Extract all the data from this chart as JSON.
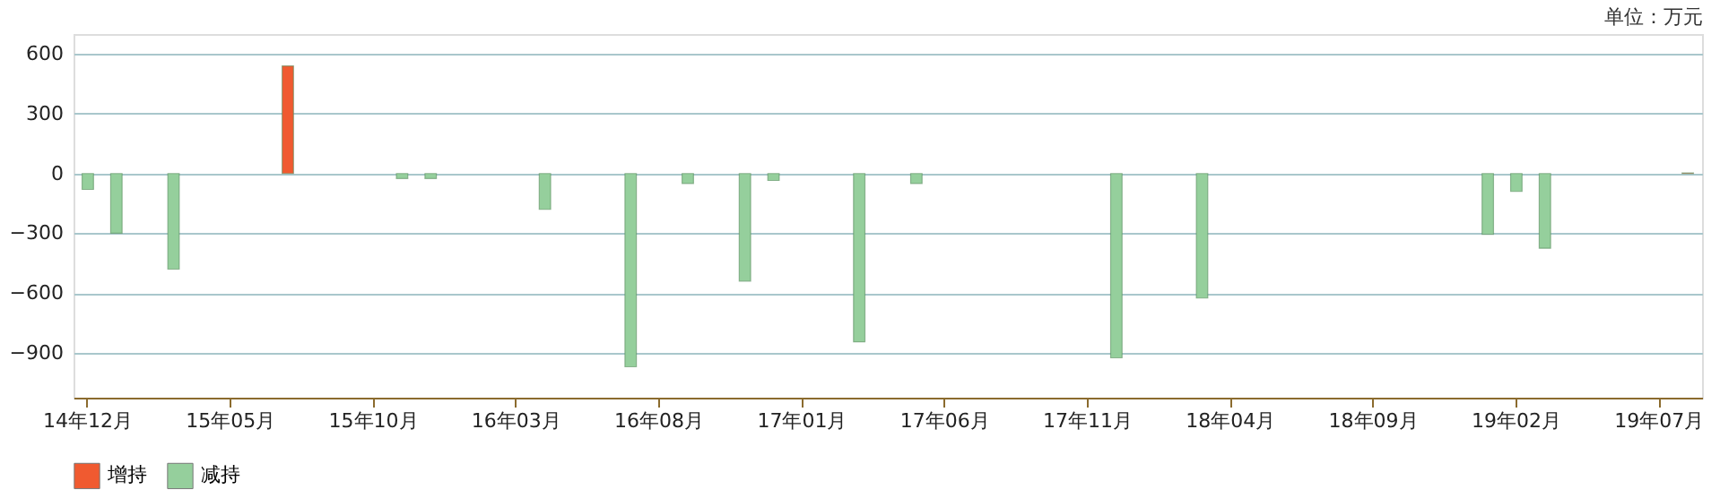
{
  "chart_data": {
    "type": "bar",
    "annotations": [
      "单位：万元"
    ],
    "categories": [
      "14年12月",
      null,
      null,
      null,
      null,
      "15年05月",
      null,
      null,
      null,
      null,
      "15年10月",
      null,
      null,
      null,
      null,
      "16年03月",
      null,
      null,
      null,
      null,
      "16年08月",
      null,
      null,
      null,
      null,
      "17年01月",
      null,
      null,
      null,
      null,
      "17年06月",
      null,
      null,
      null,
      null,
      "17年11月",
      null,
      null,
      null,
      null,
      "18年04月",
      null,
      null,
      null,
      null,
      "18年09月",
      null,
      null,
      null,
      null,
      "19年02月",
      null,
      null,
      null,
      null,
      "19年07月",
      null
    ],
    "series": [
      {
        "name": "增持",
        "color": "#f05a30",
        "values": [
          null,
          null,
          null,
          null,
          null,
          null,
          null,
          540,
          null,
          null,
          null,
          null,
          null,
          null,
          null,
          null,
          null,
          null,
          null,
          null,
          null,
          null,
          null,
          null,
          null,
          null,
          null,
          null,
          null,
          null,
          null,
          null,
          null,
          null,
          null,
          null,
          null,
          null,
          null,
          null,
          null,
          null,
          null,
          null,
          null,
          null,
          null,
          null,
          null,
          null,
          null,
          null,
          null,
          null,
          null,
          null,
          3
        ]
      },
      {
        "name": "减持",
        "color": "#95cf9c",
        "values": [
          -80,
          -300,
          null,
          -480,
          null,
          null,
          null,
          null,
          null,
          null,
          null,
          -25,
          -25,
          null,
          null,
          null,
          -180,
          null,
          null,
          -970,
          null,
          -50,
          null,
          -540,
          -35,
          null,
          null,
          -845,
          null,
          -50,
          null,
          null,
          null,
          null,
          null,
          null,
          -925,
          null,
          null,
          -625,
          null,
          null,
          null,
          null,
          null,
          null,
          null,
          null,
          null,
          -305,
          -90,
          -375,
          null,
          null,
          null,
          null,
          null
        ]
      }
    ],
    "ylim": [
      -1125,
      700
    ],
    "yticks": [
      600,
      300,
      0,
      -300,
      -600,
      -900
    ],
    "grid": "y",
    "legend": "bottom"
  }
}
